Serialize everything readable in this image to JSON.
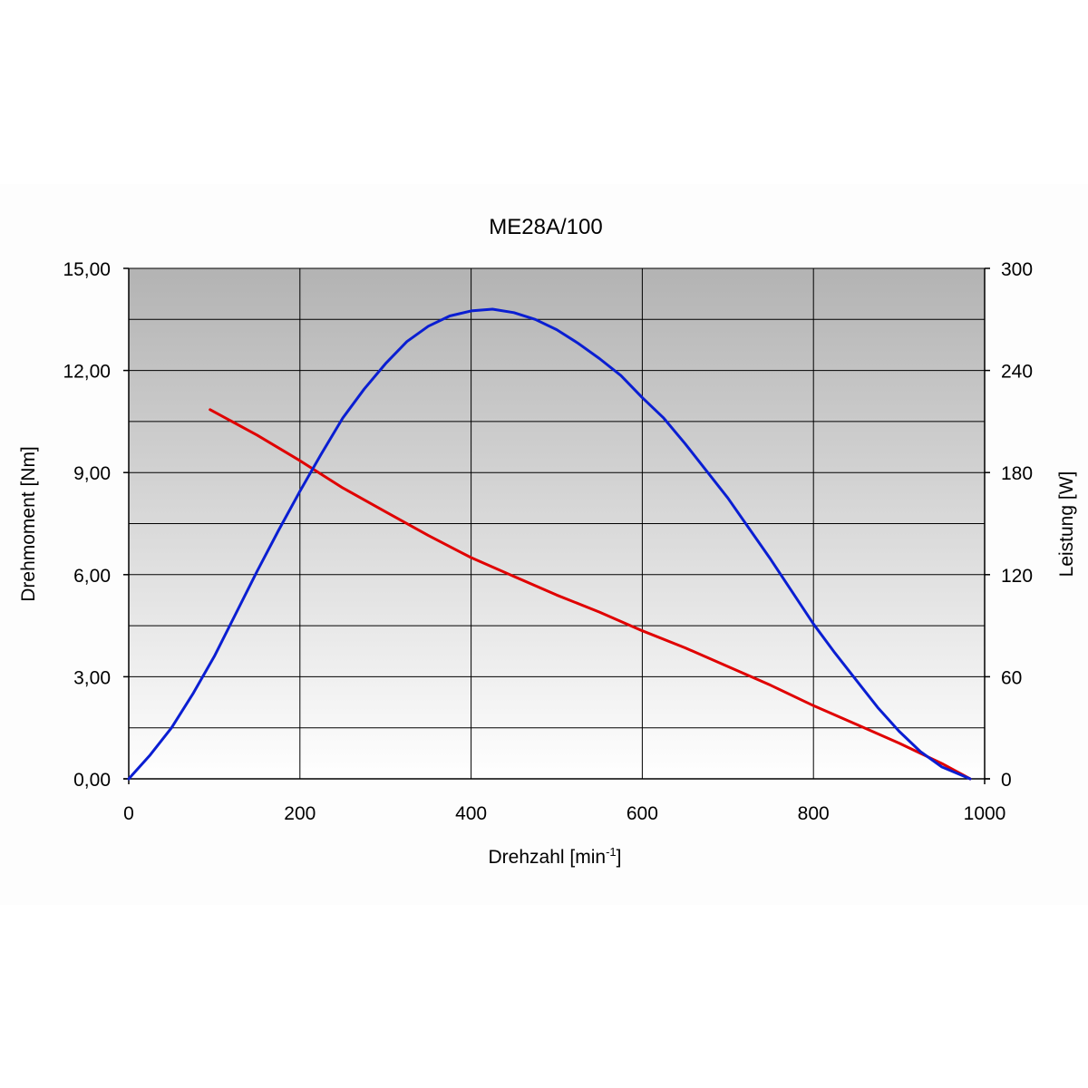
{
  "chart_data": {
    "type": "line",
    "title": "ME28A/100",
    "xlabel": {
      "base": "Drehzahl [min",
      "superscript": "-1",
      "close": "]"
    },
    "ylabel_left": "Drehmoment [Nm]",
    "ylabel_right": "Leistung [W]",
    "xlim": [
      0,
      1000
    ],
    "ylim_left": [
      0,
      15
    ],
    "ylim_right": [
      0,
      300
    ],
    "x_ticks": [
      {
        "value": 0,
        "label": "0"
      },
      {
        "value": 200,
        "label": "200"
      },
      {
        "value": 400,
        "label": "400"
      },
      {
        "value": 600,
        "label": "600"
      },
      {
        "value": 800,
        "label": "800"
      },
      {
        "value": 1000,
        "label": "1000"
      }
    ],
    "y_left_ticks": [
      {
        "value": 0,
        "label": "0,00"
      },
      {
        "value": 3,
        "label": "3,00"
      },
      {
        "value": 6,
        "label": "6,00"
      },
      {
        "value": 9,
        "label": "9,00"
      },
      {
        "value": 12,
        "label": "12,00"
      },
      {
        "value": 15,
        "label": "15,00"
      }
    ],
    "y_right_ticks": [
      {
        "value": 0,
        "label": "0"
      },
      {
        "value": 60,
        "label": "60"
      },
      {
        "value": 120,
        "label": "120"
      },
      {
        "value": 180,
        "label": "180"
      },
      {
        "value": 240,
        "label": "240"
      },
      {
        "value": 300,
        "label": "300"
      }
    ],
    "grid": true,
    "grid_y_minor_step": 1.5,
    "plot_background": "gradient dark gray (top) to white (bottom)",
    "colors": {
      "torque": "#e00000",
      "power": "#0a1ed2",
      "grid": "#000000",
      "plot_top": "#b3b3b3",
      "plot_bottom": "#ffffff"
    },
    "series": [
      {
        "axis": "left",
        "color": "#e00000",
        "x": [
          95,
          150,
          200,
          250,
          300,
          350,
          400,
          450,
          500,
          550,
          600,
          650,
          700,
          750,
          800,
          850,
          900,
          950,
          983
        ],
        "values": [
          10.85,
          10.1,
          9.35,
          8.55,
          7.85,
          7.15,
          6.5,
          5.95,
          5.4,
          4.9,
          4.35,
          3.85,
          3.3,
          2.75,
          2.15,
          1.6,
          1.05,
          0.45,
          0
        ]
      },
      {
        "axis": "right",
        "color": "#0a1ed2",
        "x": [
          0,
          25,
          50,
          75,
          100,
          125,
          150,
          175,
          200,
          225,
          250,
          275,
          300,
          325,
          350,
          375,
          400,
          425,
          450,
          475,
          500,
          525,
          550,
          575,
          600,
          625,
          650,
          675,
          700,
          725,
          750,
          775,
          800,
          825,
          850,
          875,
          900,
          925,
          950,
          983
        ],
        "values": [
          0,
          14,
          30,
          50,
          72,
          97,
          122,
          146,
          169,
          191,
          212,
          229,
          244,
          257,
          266,
          272,
          275,
          276,
          274,
          270,
          264,
          256,
          247,
          237,
          224,
          212,
          197,
          181,
          165,
          147,
          129,
          110,
          91,
          74,
          58,
          42,
          28,
          16,
          7,
          0
        ]
      }
    ]
  }
}
